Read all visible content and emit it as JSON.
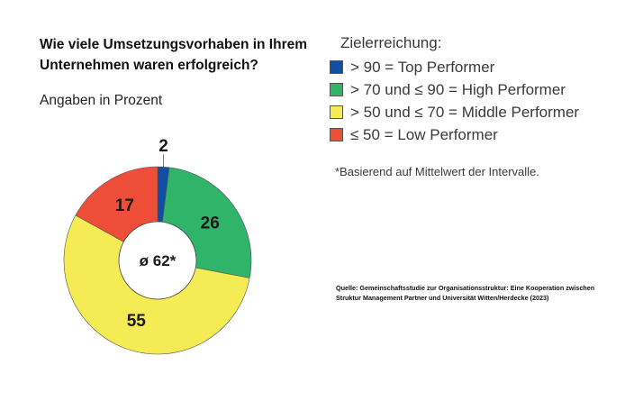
{
  "title": "Wie viele Umsetzungsvorhaben in Ihrem Unternehmen waren erfolgreich?",
  "subtitle": "Angaben in Prozent",
  "legend": {
    "title": "Zielerreichung:",
    "items": [
      {
        "label": "> 90 = Top Performer",
        "color": "#0f4ea3"
      },
      {
        "label": "> 70 und ≤ 90 = High Performer",
        "color": "#2fb46a"
      },
      {
        "label": "> 50 und ≤ 70 = Middle Performer",
        "color": "#f5ec55"
      },
      {
        "label": "≤ 50 = Low Performer",
        "color": "#ee4d38"
      }
    ]
  },
  "note": "*Basierend auf Mittelwert der Intervalle.",
  "source": "Quelle: Gemeinschaftsstudie zur Organisationsstruktur: Eine Kooperation zwischen Struktur Management Partner und Universität Witten/Herdecke (2023)",
  "chart_data": {
    "type": "pie",
    "variant": "donut",
    "title": "Wie viele Umsetzungsvorhaben in Ihrem Unternehmen waren erfolgreich?",
    "subtitle": "Angaben in Prozent",
    "categories": [
      "Top Performer",
      "High Performer",
      "Middle Performer",
      "Low Performer"
    ],
    "values": [
      2,
      26,
      55,
      17
    ],
    "labels": [
      "2",
      "26",
      "55",
      "17"
    ],
    "colors": [
      "#0f4ea3",
      "#2fb46a",
      "#f5ec55",
      "#ee4d38"
    ],
    "center_label": "ø 62*",
    "legend_position": "right"
  }
}
